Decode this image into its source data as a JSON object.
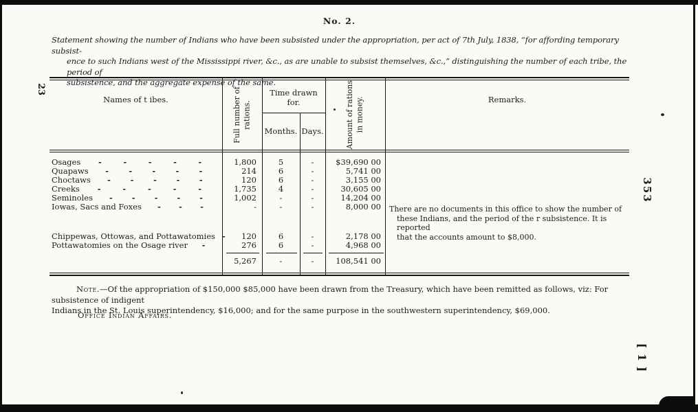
{
  "page": {
    "doc_number": "No. 2.",
    "margin_page_number_left": "23",
    "margin_page_number_right": "353",
    "margin_bracket_number": "[ 1 ]"
  },
  "statement": {
    "lines": [
      "Statement showing the number of Indians who have been subsisted under the appropriation, per act of 7th July, 1838, “for affording temporary subsist-",
      "ence to such Indians west of the Mississippi river, &c., as are unable to subsist themselves, &c.,” distinguishing the number of each tribe, the period of",
      "subsistence, and the aggregate expense of the same."
    ]
  },
  "table": {
    "headers": {
      "names": "Names of t ibes.",
      "full_rations": "Full number of\nrations.",
      "time_drawn": "Time drawn for.",
      "months": "Months.",
      "days": "Days.",
      "amount": "Amount of rations\nin money.",
      "remarks": "Remarks."
    },
    "rows": [
      {
        "name": "Osages",
        "dashes": "- - - - -",
        "rations": "1,800",
        "months": "5",
        "days": "-",
        "amount": "$39,690 00"
      },
      {
        "name": "Quapaws",
        "dashes": "- - - - -",
        "rations": "214",
        "months": "6",
        "days": "-",
        "amount": "5,741 00"
      },
      {
        "name": "Choctaws",
        "dashes": "- - - - -",
        "rations": "120",
        "months": "6",
        "days": "-",
        "amount": "3,155 00"
      },
      {
        "name": "Creeks",
        "dashes": "- - - - -",
        "rations": "1,735",
        "months": "4",
        "days": "-",
        "amount": "30,605 00"
      },
      {
        "name": "Seminoles",
        "dashes": "- - - - -",
        "rations": "1,002",
        "months": "-",
        "days": "-",
        "amount": "14,204 00"
      },
      {
        "name": "Iowas, Sacs and Foxes",
        "dashes": "- - -",
        "rations": "-",
        "months": "-",
        "days": "-",
        "amount": "8,000 00"
      },
      {
        "name": "Chippewas, Ottowas, and Pottawatomies",
        "dashes": "-",
        "rations": "120",
        "months": "6",
        "days": "-",
        "amount": "2,178 00"
      },
      {
        "name": "Pottawatomies on the Osage river",
        "dashes": "-",
        "rations": "276",
        "months": "6",
        "days": "-",
        "amount": "4,968 00"
      }
    ],
    "totals": {
      "rations": "5,267",
      "months": "-",
      "days": "-",
      "amount": "108,541 00"
    },
    "remarks_lines": [
      "There are no documents in this office to show the number of",
      "these Indians, and the period of the r subsistence.  It is reported",
      "that the accounts amount to $8,000."
    ]
  },
  "note": {
    "label": "Note.",
    "line1": "—Of the appropriation of $150,000 $85,000 have been drawn from the Treasury, which have been remitted as follows, viz: For subsistence of indigent",
    "line2": "Indians in the St. Louis superintendency, $16,000; and for the same purpose in the southwestern superintendency, $69,000."
  },
  "office_line": "Office Indian Affairs."
}
